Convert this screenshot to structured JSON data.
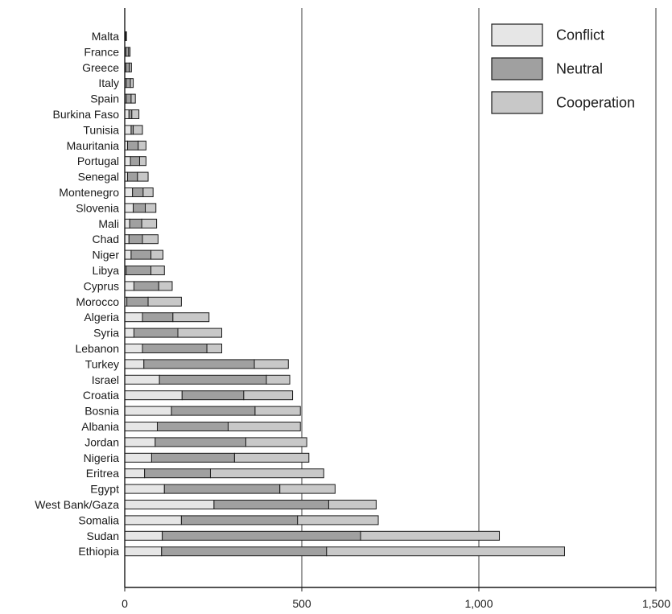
{
  "chart_data": {
    "type": "bar",
    "orientation": "horizontal",
    "stacked": true,
    "title": "",
    "xlabel": "",
    "ylabel": "",
    "xlim": [
      0,
      1500
    ],
    "x_ticks": [
      0,
      500,
      1000,
      1500
    ],
    "x_tick_labels": [
      "0",
      "500",
      "1,000",
      "1,500"
    ],
    "grid": true,
    "legend_position": "top-right",
    "stack_order": [
      "Conflict",
      "Neutral",
      "Cooperation"
    ],
    "categories": [
      "Malta",
      "France",
      "Greece",
      "Italy",
      "Spain",
      "Burkina Faso",
      "Tunisia",
      "Mauritania",
      "Portugal",
      "Senegal",
      "Montenegro",
      "Slovenia",
      "Mali",
      "Chad",
      "Niger",
      "Libya",
      "Cyprus",
      "Morocco",
      "Algeria",
      "Syria",
      "Lebanon",
      "Turkey",
      "Israel",
      "Croatia",
      "Bosnia",
      "Albania",
      "Jordan",
      "Nigeria",
      "Eritrea",
      "Egypt",
      "West Bank/Gaza",
      "Somalia",
      "Sudan",
      "Ethiopia"
    ],
    "series": [
      {
        "name": "Conflict",
        "color": "#e6e6e6",
        "values": [
          1,
          3,
          3,
          4,
          4,
          12,
          18,
          8,
          16,
          8,
          22,
          24,
          14,
          12,
          18,
          4,
          26,
          6,
          50,
          26,
          50,
          54,
          98,
          162,
          132,
          92,
          86,
          76,
          56,
          112,
          252,
          160,
          106,
          104
        ]
      },
      {
        "name": "Neutral",
        "color": "#a0a0a0",
        "values": [
          2,
          8,
          10,
          12,
          14,
          8,
          6,
          30,
          26,
          28,
          30,
          34,
          34,
          38,
          56,
          70,
          70,
          60,
          86,
          124,
          182,
          312,
          302,
          174,
          236,
          200,
          256,
          234,
          186,
          326,
          324,
          328,
          560,
          466
        ]
      },
      {
        "name": "Cooperation",
        "color": "#c8c8c8",
        "values": [
          1,
          4,
          6,
          8,
          12,
          20,
          26,
          22,
          18,
          30,
          28,
          30,
          42,
          44,
          34,
          38,
          38,
          94,
          102,
          124,
          42,
          96,
          66,
          138,
          128,
          204,
          172,
          210,
          320,
          156,
          134,
          228,
          392,
          672
        ]
      }
    ],
    "colors": {
      "edge": "#1a1a1a",
      "gridline": "#3a3a3a",
      "axis": "#1a1a1a",
      "legend_edge": "#1a1a1a"
    }
  }
}
